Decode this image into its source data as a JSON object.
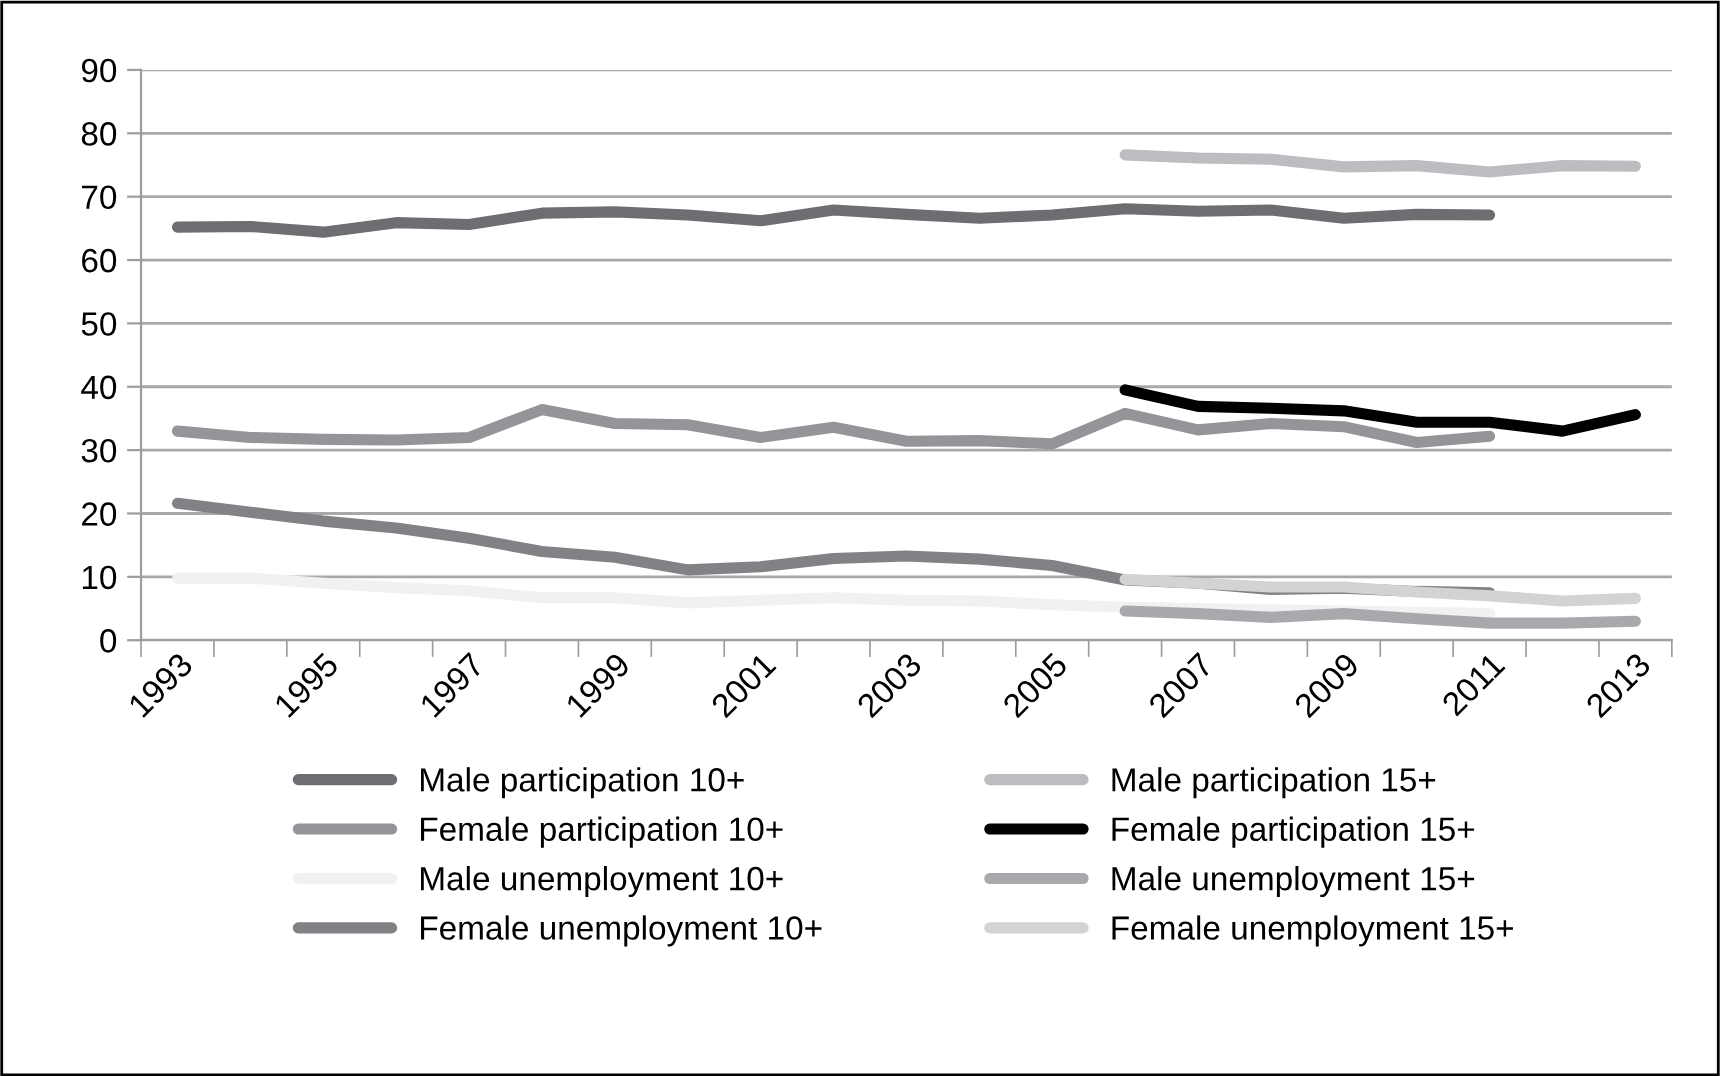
{
  "chart_data": {
    "type": "line",
    "categories": [
      "1993",
      null,
      "1995",
      null,
      "1997",
      null,
      "1999",
      null,
      "2001",
      null,
      "2003",
      null,
      "2005",
      null,
      "2007",
      null,
      "2009",
      null,
      "2011",
      null,
      "2013"
    ],
    "ylim": [
      0,
      90
    ],
    "yticks": [
      0,
      10,
      20,
      30,
      40,
      50,
      60,
      70,
      80,
      90
    ],
    "grid": "y",
    "legend": "bottom",
    "marker": "none",
    "line_style": "solid",
    "series": [
      {
        "name": "Male participation 10+",
        "color": "#6d6e71",
        "values": [
          65.2,
          65.3,
          64.4,
          65.9,
          65.6,
          67.4,
          67.6,
          67.1,
          66.2,
          67.9,
          67.2,
          66.6,
          67.1,
          68.1,
          67.7,
          67.9,
          66.6,
          67.2,
          67.1,
          null,
          null
        ]
      },
      {
        "name": "Male participation 15+",
        "color": "#bcbdc0",
        "values": [
          null,
          null,
          null,
          null,
          null,
          null,
          null,
          null,
          null,
          null,
          null,
          null,
          null,
          76.6,
          76.1,
          75.9,
          74.7,
          74.9,
          73.9,
          74.9,
          74.8
        ]
      },
      {
        "name": "Female participation 10+",
        "color": "#939598",
        "values": [
          33,
          32,
          31.7,
          31.6,
          32,
          36.4,
          34.2,
          34,
          32,
          33.6,
          31.4,
          31.5,
          31,
          35.8,
          33.2,
          34.2,
          33.7,
          31.2,
          32.2,
          null,
          null
        ]
      },
      {
        "name": "Female participation 15+",
        "color": "#000000",
        "values": [
          null,
          null,
          null,
          null,
          null,
          null,
          null,
          null,
          null,
          null,
          null,
          null,
          null,
          39.5,
          36.9,
          36.6,
          36.2,
          34.4,
          34.4,
          33,
          35.6
        ]
      },
      {
        "name": "Male unemployment 10+",
        "color": "#f1f1f2",
        "values": [
          9.8,
          9.8,
          9,
          8.3,
          7.8,
          6.7,
          6.7,
          5.9,
          6.3,
          6.7,
          6.3,
          6.2,
          5.6,
          5.2,
          5,
          4.8,
          4.6,
          4.4,
          4.2,
          null,
          null
        ]
      },
      {
        "name": "Male unemployment 15+",
        "color": "#a7a9ac",
        "values": [
          null,
          null,
          null,
          null,
          null,
          null,
          null,
          null,
          null,
          null,
          null,
          null,
          null,
          4.6,
          4.2,
          3.6,
          4.2,
          3.4,
          2.7,
          2.7,
          3
        ]
      },
      {
        "name": "Female unemployment 10+",
        "color": "#808285",
        "values": [
          21.6,
          20.2,
          18.8,
          17.7,
          16.1,
          14,
          13.1,
          11.1,
          11.6,
          12.9,
          13.3,
          12.8,
          11.8,
          9.5,
          9,
          8,
          8.2,
          7.7,
          7.5,
          null,
          null
        ]
      },
      {
        "name": "Female unemployment 15+",
        "color": "#d1d3d4",
        "values": [
          null,
          null,
          null,
          null,
          null,
          null,
          null,
          null,
          null,
          null,
          null,
          null,
          null,
          9.6,
          9,
          8.4,
          8.4,
          7.6,
          7,
          6.2,
          6.6
        ]
      }
    ]
  }
}
